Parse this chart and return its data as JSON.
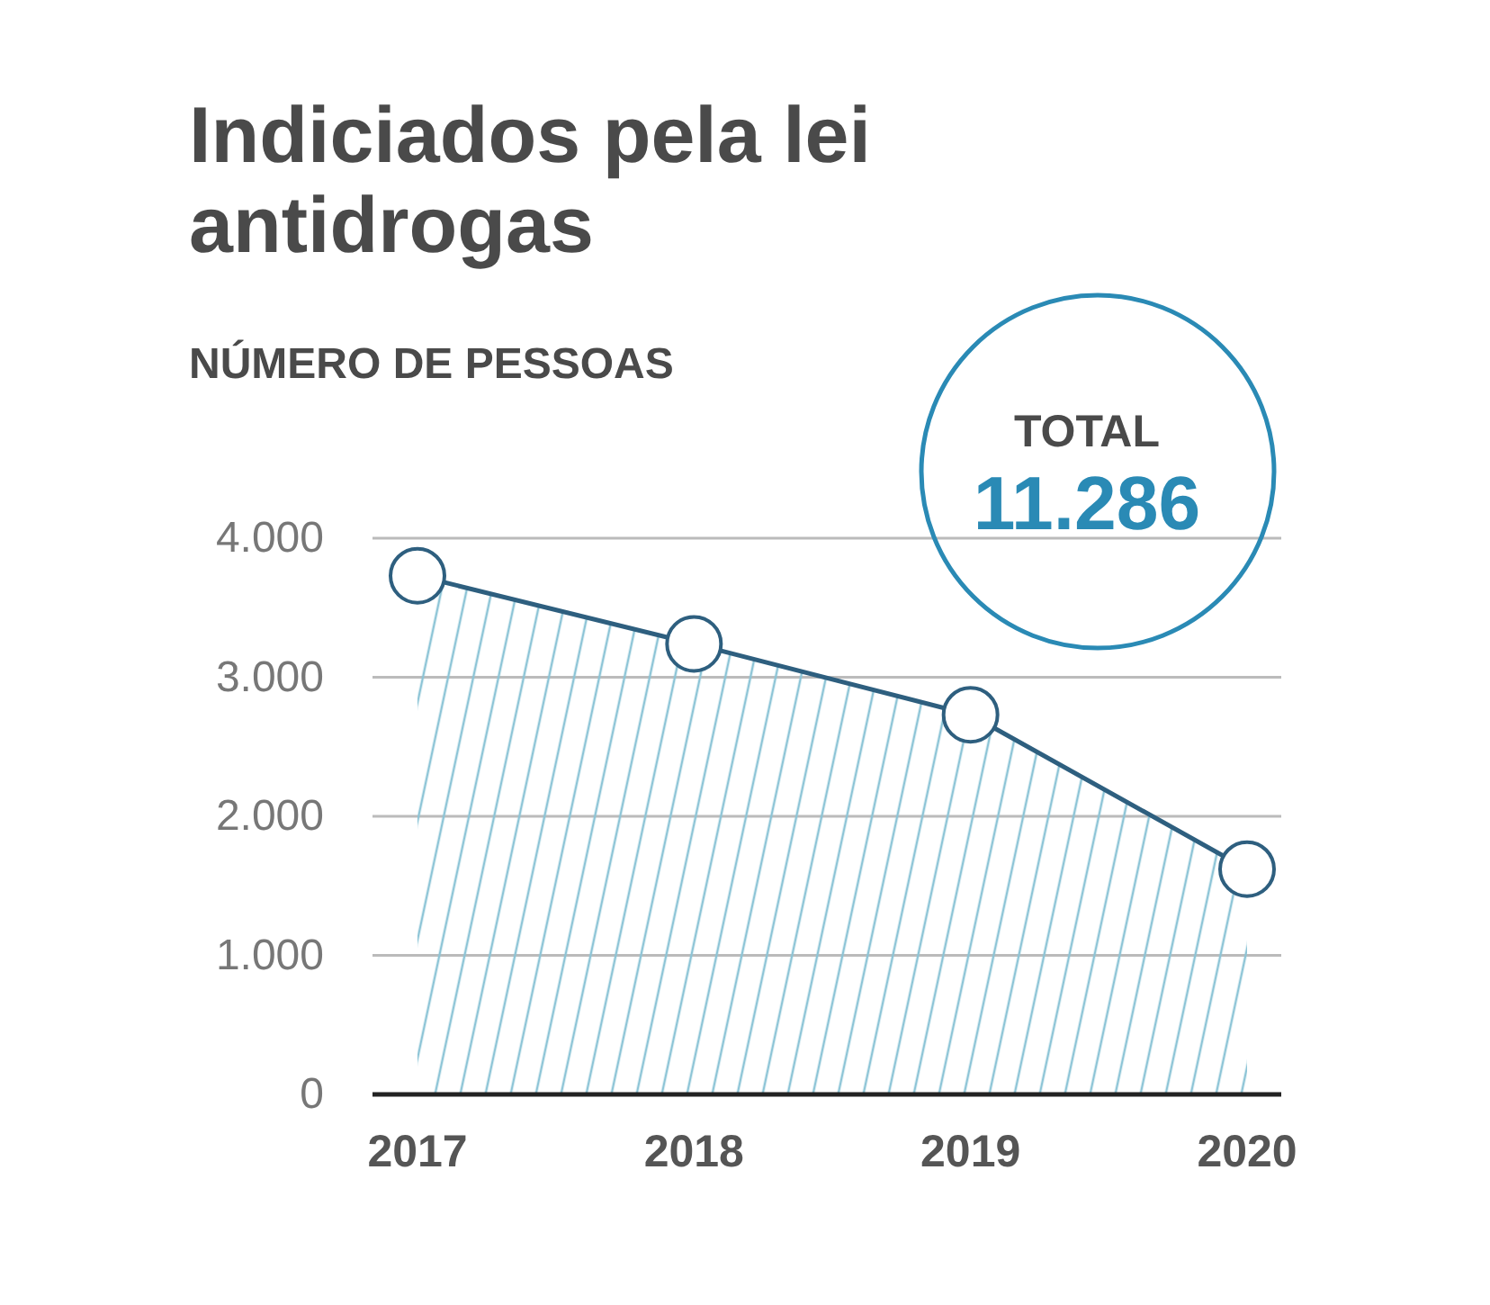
{
  "chart_data": {
    "type": "area",
    "title": "Indiciados pela lei antidrogas",
    "subtitle": "NÚMERO DE PESSOAS",
    "categories": [
      "2017",
      "2018",
      "2019",
      "2020"
    ],
    "series": [
      {
        "color": "#2e5f7f",
        "values": [
          3730,
          3240,
          2730,
          1620
        ]
      }
    ],
    "ylim": [
      0,
      4000
    ],
    "yticks": [
      {
        "value": 0,
        "label": "0"
      },
      {
        "value": 1000,
        "label": "1.000"
      },
      {
        "value": 2000,
        "label": "2.000"
      },
      {
        "value": 3000,
        "label": "3.000"
      },
      {
        "value": 4000,
        "label": "4.000"
      }
    ],
    "grid": "y",
    "marker": "circle",
    "line_style": "solid",
    "annotations": [
      "TOTAL",
      "11.286"
    ]
  }
}
